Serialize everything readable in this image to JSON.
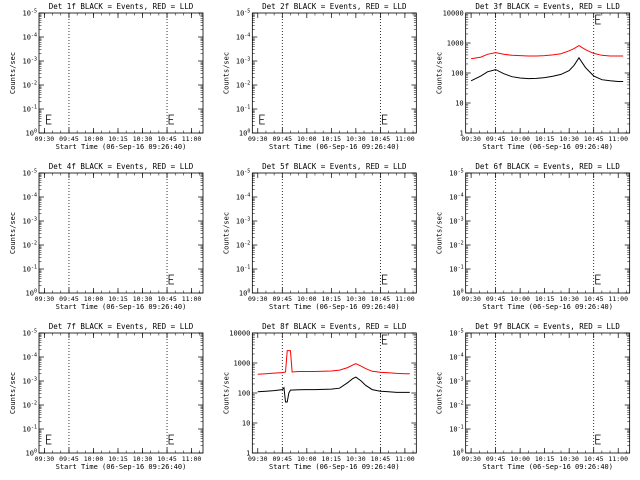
{
  "panel_grid": {
    "rows": 3,
    "cols": 3
  },
  "chart_data": [
    {
      "type": "line",
      "title": "Det 1f BLACK = Events, RED = LLD",
      "ylabel": "Counts/sec",
      "xlabel": "Start Time (06-Sep-16 09:26:40)",
      "x_ticks": [
        "09:30",
        "09:45",
        "10:00",
        "10:15",
        "10:30",
        "10:45",
        "11:00"
      ],
      "y_ticks": [
        "10^0",
        "10^-1",
        "10^-2",
        "10^-3",
        "10^-4",
        "10^-5"
      ],
      "ylim": [
        "10^-5",
        "10^0"
      ],
      "log_y": true,
      "has_data": false,
      "vlines": [
        "09:45",
        "10:45"
      ],
      "marker_times": [
        "09:30",
        "10:45"
      ],
      "series": []
    },
    {
      "type": "line",
      "title": "Det 2f BLACK = Events, RED = LLD",
      "ylabel": "Counts/sec",
      "xlabel": "Start Time (06-Sep-16 09:26:40)",
      "x_ticks": [
        "09:30",
        "09:45",
        "10:00",
        "10:15",
        "10:30",
        "10:45",
        "11:00"
      ],
      "y_ticks": [
        "10^0",
        "10^-1",
        "10^-2",
        "10^-3",
        "10^-4",
        "10^-5"
      ],
      "ylim": [
        "10^-5",
        "10^0"
      ],
      "log_y": true,
      "has_data": false,
      "vlines": [
        "09:45",
        "10:45"
      ],
      "marker_times": [
        "09:30",
        "10:45"
      ],
      "series": []
    },
    {
      "type": "line",
      "title": "Det 3f BLACK = Events, RED = LLD",
      "ylabel": "Counts/sec",
      "xlabel": "Start Time (06-Sep-16 09:26:40)",
      "x_ticks": [
        "09:30",
        "09:45",
        "10:00",
        "10:15",
        "10:30",
        "10:45",
        "11:00"
      ],
      "y_ticks": [
        "1",
        "10",
        "100",
        "1000",
        "10000"
      ],
      "ylim": [
        1,
        10000
      ],
      "log_y": true,
      "has_data": true,
      "vlines": [
        "09:45",
        "10:45"
      ],
      "marker_times": [
        "10:45"
      ],
      "series": [
        {
          "color": "#ff0000",
          "x": [
            "09:30",
            "09:36",
            "09:40",
            "09:45",
            "09:50",
            "09:55",
            "10:00",
            "10:05",
            "10:10",
            "10:15",
            "10:20",
            "10:25",
            "10:30",
            "10:33",
            "10:36",
            "10:40",
            "10:45",
            "10:50",
            "10:55",
            "11:00",
            "11:03"
          ],
          "y": [
            300,
            340,
            420,
            480,
            420,
            390,
            380,
            370,
            370,
            380,
            400,
            440,
            550,
            650,
            820,
            600,
            450,
            390,
            370,
            370,
            370
          ]
        },
        {
          "color": "#000000",
          "x": [
            "09:30",
            "09:36",
            "09:40",
            "09:45",
            "09:50",
            "09:55",
            "10:00",
            "10:05",
            "10:10",
            "10:15",
            "10:20",
            "10:25",
            "10:30",
            "10:33",
            "10:36",
            "10:40",
            "10:45",
            "10:50",
            "10:55",
            "11:00",
            "11:03"
          ],
          "y": [
            55,
            80,
            110,
            130,
            95,
            75,
            68,
            65,
            66,
            70,
            78,
            90,
            120,
            180,
            320,
            150,
            80,
            60,
            55,
            52,
            52
          ]
        }
      ]
    },
    {
      "type": "line",
      "title": "Det 4f BLACK = Events, RED = LLD",
      "ylabel": "Counts/sec",
      "xlabel": "Start Time (06-Sep-16 09:26:40)",
      "x_ticks": [
        "09:30",
        "09:45",
        "10:00",
        "10:15",
        "10:30",
        "10:45",
        "11:00"
      ],
      "y_ticks": [
        "10^0",
        "10^-1",
        "10^-2",
        "10^-3",
        "10^-4",
        "10^-5"
      ],
      "ylim": [
        "10^-5",
        "10^0"
      ],
      "log_y": true,
      "has_data": false,
      "vlines": [
        "09:45",
        "10:45"
      ],
      "marker_times": [
        "10:45"
      ],
      "series": []
    },
    {
      "type": "line",
      "title": "Det 5f BLACK = Events, RED = LLD",
      "ylabel": "Counts/sec",
      "xlabel": "Start Time (06-Sep-16 09:26:40)",
      "x_ticks": [
        "09:30",
        "09:45",
        "10:00",
        "10:15",
        "10:30",
        "10:45",
        "11:00"
      ],
      "y_ticks": [
        "10^0",
        "10^-1",
        "10^-2",
        "10^-3",
        "10^-4",
        "10^-5"
      ],
      "ylim": [
        "10^-5",
        "10^0"
      ],
      "log_y": true,
      "has_data": false,
      "vlines": [
        "09:45",
        "10:45"
      ],
      "marker_times": [
        "10:45"
      ],
      "series": []
    },
    {
      "type": "line",
      "title": "Det 6f BLACK = Events, RED = LLD",
      "ylabel": "Counts/sec",
      "xlabel": "Start Time (06-Sep-16 09:26:40)",
      "x_ticks": [
        "09:30",
        "09:45",
        "10:00",
        "10:15",
        "10:30",
        "10:45",
        "11:00"
      ],
      "y_ticks": [
        "10^0",
        "10^-1",
        "10^-2",
        "10^-3",
        "10^-4",
        "10^-5"
      ],
      "ylim": [
        "10^-5",
        "10^0"
      ],
      "log_y": true,
      "has_data": false,
      "vlines": [
        "09:45",
        "10:45"
      ],
      "marker_times": [
        "10:45"
      ],
      "series": []
    },
    {
      "type": "line",
      "title": "Det 7f BLACK = Events, RED = LLD",
      "ylabel": "Counts/sec",
      "xlabel": "Start Time (06-Sep-16 09:26:40)",
      "x_ticks": [
        "09:30",
        "09:45",
        "10:00",
        "10:15",
        "10:30",
        "10:45",
        "11:00"
      ],
      "y_ticks": [
        "10^0",
        "10^-1",
        "10^-2",
        "10^-3",
        "10^-4",
        "10^-5"
      ],
      "ylim": [
        "10^-5",
        "10^0"
      ],
      "log_y": true,
      "has_data": false,
      "vlines": [
        "09:45",
        "10:45"
      ],
      "marker_times": [
        "09:30",
        "10:45"
      ],
      "series": []
    },
    {
      "type": "line",
      "title": "Det 8f BLACK = Events, RED = LLD",
      "ylabel": "Counts/sec",
      "xlabel": "Start Time (06-Sep-16 09:26:40)",
      "x_ticks": [
        "09:30",
        "09:45",
        "10:00",
        "10:15",
        "10:30",
        "10:45",
        "11:00"
      ],
      "y_ticks": [
        "1",
        "10",
        "100",
        "1000",
        "10000"
      ],
      "ylim": [
        1,
        10000
      ],
      "log_y": true,
      "has_data": true,
      "vlines": [
        "09:45",
        "10:45"
      ],
      "marker_times": [
        "10:45"
      ],
      "series": [
        {
          "color": "#ff0000",
          "x": [
            "09:30",
            "09:35",
            "09:40",
            "09:45",
            "09:47",
            "09:48",
            "09:50",
            "09:51",
            "09:55",
            "10:00",
            "10:05",
            "10:10",
            "10:15",
            "10:20",
            "10:25",
            "10:28",
            "10:30",
            "10:33",
            "10:36",
            "10:40",
            "10:45",
            "10:50",
            "10:55",
            "11:00",
            "11:03"
          ],
          "y": [
            420,
            440,
            460,
            480,
            500,
            2600,
            2600,
            500,
            520,
            520,
            520,
            530,
            540,
            580,
            700,
            850,
            950,
            800,
            650,
            530,
            490,
            470,
            450,
            440,
            440
          ]
        },
        {
          "color": "#000000",
          "x": [
            "09:30",
            "09:35",
            "09:40",
            "09:45",
            "09:46",
            "09:47",
            "09:48",
            "09:49",
            "09:50",
            "09:55",
            "10:00",
            "10:05",
            "10:10",
            "10:15",
            "10:20",
            "10:25",
            "10:28",
            "10:30",
            "10:33",
            "10:36",
            "10:40",
            "10:45",
            "10:50",
            "10:55",
            "11:00",
            "11:03"
          ],
          "y": [
            110,
            115,
            120,
            130,
            150,
            50,
            50,
            100,
            125,
            128,
            130,
            130,
            132,
            135,
            145,
            220,
            300,
            340,
            260,
            180,
            130,
            115,
            110,
            105,
            105,
            105
          ]
        }
      ]
    },
    {
      "type": "line",
      "title": "Det 9f BLACK = Events, RED = LLD",
      "ylabel": "Counts/sec",
      "xlabel": "Start Time (06-Sep-16 09:26:40)",
      "x_ticks": [
        "09:30",
        "09:45",
        "10:00",
        "10:15",
        "10:30",
        "10:45",
        "11:00"
      ],
      "y_ticks": [
        "10^0",
        "10^-1",
        "10^-2",
        "10^-3",
        "10^-4",
        "10^-5"
      ],
      "ylim": [
        "10^-5",
        "10^0"
      ],
      "log_y": true,
      "has_data": false,
      "vlines": [
        "09:45",
        "10:45"
      ],
      "marker_times": [
        "10:45"
      ],
      "series": []
    }
  ]
}
